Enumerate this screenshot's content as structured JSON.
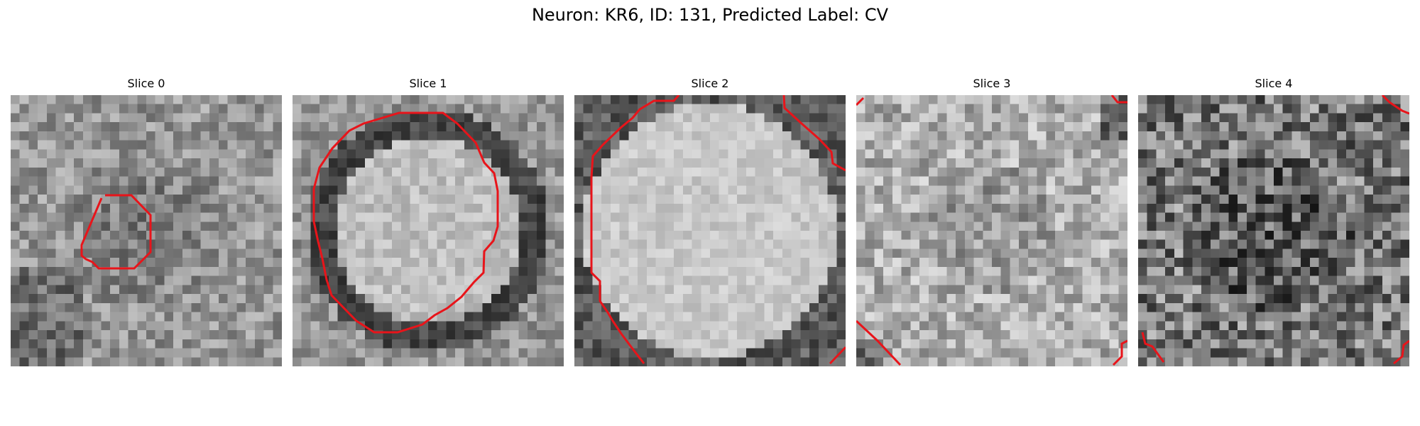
{
  "figure": {
    "title": "Neuron: KR6, ID: 131, Predicted Label: CV",
    "contour_color": "#e8141a"
  },
  "panels": [
    {
      "title": "Slice 0",
      "base": "low_dark_center"
    },
    {
      "title": "Slice 1",
      "base": "bright_disk_dark_ring"
    },
    {
      "title": "Slice 2",
      "base": "bright_large_disk"
    },
    {
      "title": "Slice 3",
      "base": "bright_noisy"
    },
    {
      "title": "Slice 4",
      "base": "dark_noisy"
    }
  ]
}
